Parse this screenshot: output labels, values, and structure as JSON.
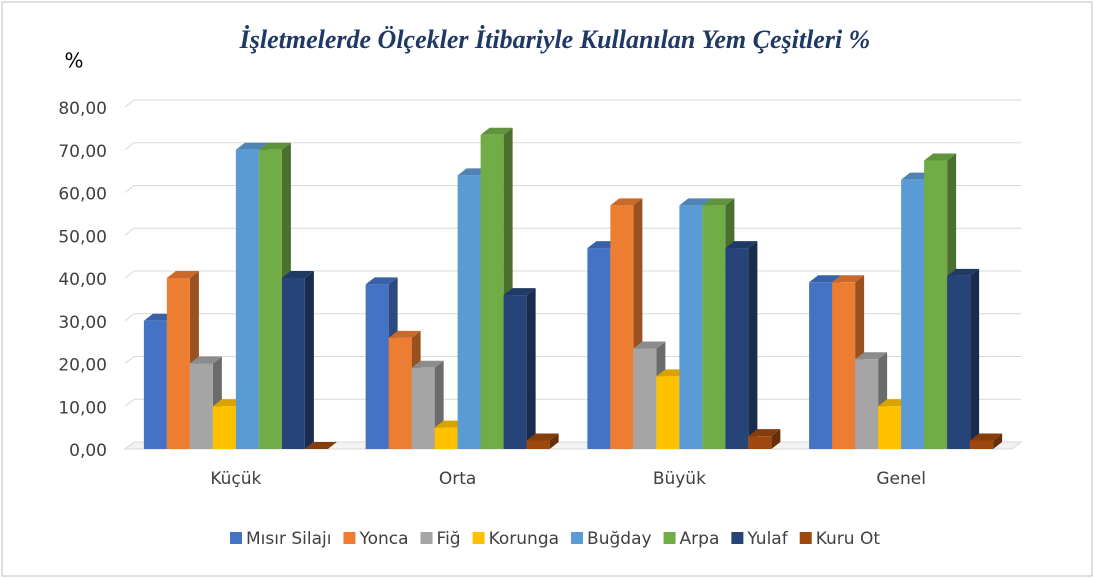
{
  "chart_data": {
    "type": "bar3d",
    "title": "İşletmelerde Ölçekler İtibariyle Kullanılan Yem Çeşitleri %",
    "y_label": "%",
    "categories": [
      "Küçük",
      "Orta",
      "Büyük",
      "Genel"
    ],
    "series": [
      {
        "name": "Mısır Silajı",
        "color": "#4472c4",
        "values": [
          30,
          38.5,
          47,
          39
        ]
      },
      {
        "name": "Yonca",
        "color": "#ed7d31",
        "values": [
          40,
          26,
          57,
          39
        ]
      },
      {
        "name": "Fiğ",
        "color": "#a5a5a5",
        "values": [
          20,
          19,
          23.5,
          21
        ]
      },
      {
        "name": "Korunga",
        "color": "#ffc000",
        "values": [
          10,
          5,
          17,
          10
        ]
      },
      {
        "name": "Buğday",
        "color": "#5b9bd5",
        "values": [
          70,
          64,
          57,
          63
        ]
      },
      {
        "name": "Arpa",
        "color": "#70ad47",
        "values": [
          70,
          73.5,
          57,
          67.5
        ]
      },
      {
        "name": "Yulaf",
        "color": "#264478",
        "values": [
          40,
          36,
          47,
          40.5
        ]
      },
      {
        "name": "Kuru Ot",
        "color": "#9e480e",
        "values": [
          0,
          2,
          3,
          2
        ]
      }
    ],
    "ylim": [
      0,
      80
    ],
    "yticks": [
      {
        "value": 0,
        "label": "0,00"
      },
      {
        "value": 10,
        "label": "10,00"
      },
      {
        "value": 20,
        "label": "20,00"
      },
      {
        "value": 30,
        "label": "30,00"
      },
      {
        "value": 40,
        "label": "40,00"
      },
      {
        "value": 50,
        "label": "50,00"
      },
      {
        "value": 60,
        "label": "60,00"
      },
      {
        "value": 70,
        "label": "70,00"
      },
      {
        "value": 80,
        "label": "80,00"
      }
    ],
    "grid": true,
    "legend": "bottom"
  }
}
